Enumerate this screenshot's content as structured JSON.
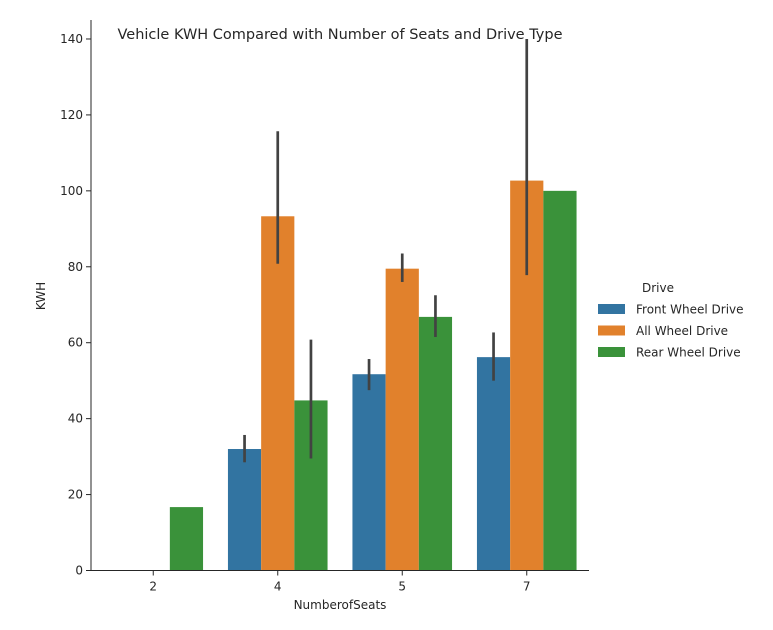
{
  "chart_data": {
    "type": "bar",
    "title": "Vehicle KWH Compared with Number of Seats and Drive Type",
    "xlabel": "NumberofSeats",
    "ylabel": "KWH",
    "categories": [
      "2",
      "4",
      "5",
      "7"
    ],
    "ylim": [
      0,
      145
    ],
    "yticks": [
      0,
      20,
      40,
      60,
      80,
      100,
      120,
      140
    ],
    "grid": false,
    "legend": {
      "title": "Drive",
      "placement": "right"
    },
    "series": [
      {
        "name": "Front Wheel Drive",
        "color": "#3274a1",
        "values": [
          null,
          32,
          51.7,
          56.2
        ],
        "ci_low": [
          null,
          28.5,
          47.5,
          50
        ],
        "ci_high": [
          null,
          35.7,
          55.7,
          62.7
        ]
      },
      {
        "name": "All Wheel Drive",
        "color": "#e1812c",
        "values": [
          null,
          93.3,
          79.5,
          102.7
        ],
        "ci_low": [
          null,
          80.8,
          76,
          77.8
        ],
        "ci_high": [
          null,
          115.7,
          83.5,
          140
        ]
      },
      {
        "name": "Rear Wheel Drive",
        "color": "#3a923a",
        "values": [
          16.7,
          44.8,
          66.8,
          100
        ],
        "ci_low": [
          16.7,
          29.5,
          61.5,
          100
        ],
        "ci_high": [
          16.7,
          60.8,
          72.5,
          100
        ]
      }
    ]
  }
}
